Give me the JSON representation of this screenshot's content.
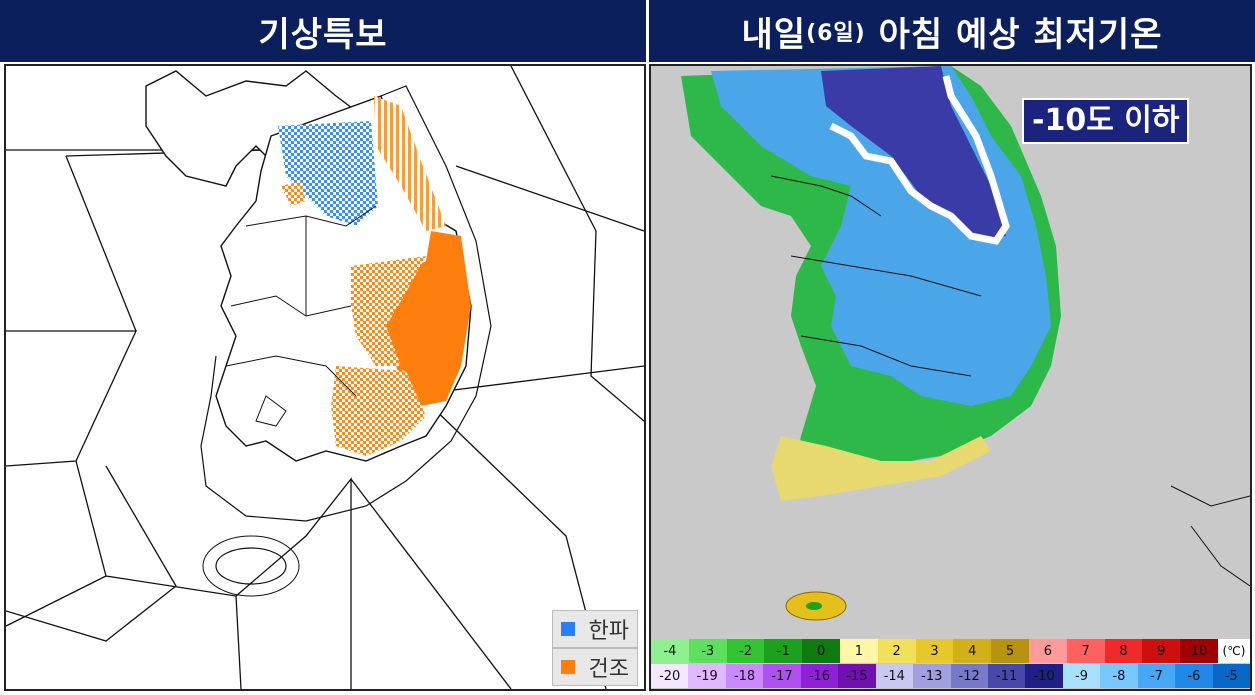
{
  "left_title": "기상특보",
  "right_title_main": "내일",
  "right_title_paren": "(6일)",
  "right_title_rest": " 아침 예상 최저기온",
  "badge": "-10도 이하",
  "legend": [
    {
      "label": "한파",
      "color": "#2a7fff"
    },
    {
      "label": "건조",
      "color": "#ff7f0e"
    }
  ],
  "scale_top": [
    {
      "v": "-4",
      "c": "#8ef08e"
    },
    {
      "v": "-3",
      "c": "#5ee05e"
    },
    {
      "v": "-2",
      "c": "#33c433"
    },
    {
      "v": "-1",
      "c": "#1ba11b"
    },
    {
      "v": "0",
      "c": "#0f7a0f"
    },
    {
      "v": "1",
      "c": "#fff6a8"
    },
    {
      "v": "2",
      "c": "#f3e05a"
    },
    {
      "v": "3",
      "c": "#e6c82a"
    },
    {
      "v": "4",
      "c": "#d2b01a"
    },
    {
      "v": "5",
      "c": "#b89310"
    },
    {
      "v": "6",
      "c": "#ff9a9a"
    },
    {
      "v": "7",
      "c": "#ff6060"
    },
    {
      "v": "8",
      "c": "#ee2a2a"
    },
    {
      "v": "9",
      "c": "#cc1010"
    },
    {
      "v": "10",
      "c": "#a00000"
    }
  ],
  "scale_bottom": [
    {
      "v": "-20",
      "c": "#f3e8ff"
    },
    {
      "v": "-19",
      "c": "#e0b8ff"
    },
    {
      "v": "-18",
      "c": "#cc88ff"
    },
    {
      "v": "-17",
      "c": "#b050f0"
    },
    {
      "v": "-16",
      "c": "#9020d8"
    },
    {
      "v": "-15",
      "c": "#7010b0"
    },
    {
      "v": "-14",
      "c": "#c8c8f0"
    },
    {
      "v": "-13",
      "c": "#a0a0e0"
    },
    {
      "v": "-12",
      "c": "#7878c8"
    },
    {
      "v": "-11",
      "c": "#4848a8"
    },
    {
      "v": "-10",
      "c": "#1f1f88"
    },
    {
      "v": "-9",
      "c": "#a8e0ff"
    },
    {
      "v": "-8",
      "c": "#78c8ff"
    },
    {
      "v": "-7",
      "c": "#48a8f8"
    },
    {
      "v": "-6",
      "c": "#2088e8"
    },
    {
      "v": "-5",
      "c": "#0868c8"
    }
  ],
  "unit": "(℃)"
}
